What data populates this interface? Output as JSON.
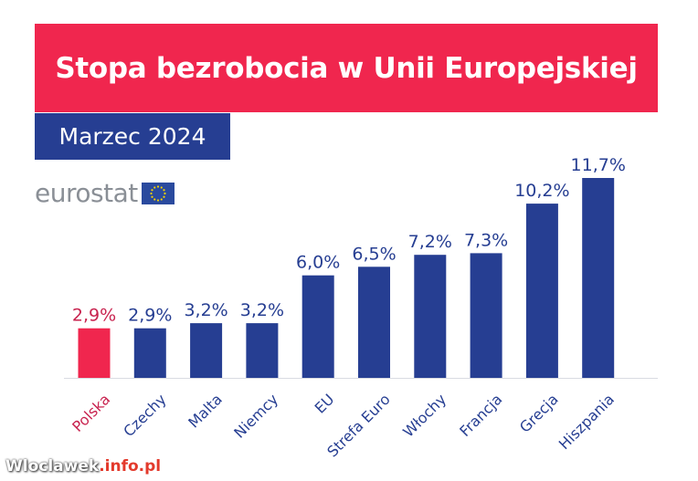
{
  "header": {
    "title": "Stopa bezrobocia w Unii Europejskiej",
    "subtitle": "Marzec 2024"
  },
  "logo": {
    "text": "eurostat",
    "flag_icon": "eu-flag-icon"
  },
  "watermark": {
    "main": "Wloclawek",
    "accent": ".info.pl"
  },
  "colors": {
    "title_bg": "#f0264e",
    "subtitle_bg": "#263e92",
    "bar": "#263e92",
    "highlight_bar": "#f0264e",
    "highlight_label": "#c8234f",
    "label": "#263e92"
  },
  "chart_data": {
    "type": "bar",
    "categories": [
      "Polska",
      "Czechy",
      "Malta",
      "Niemcy",
      "EU",
      "Strefa Euro",
      "Włochy",
      "Francja",
      "Grecja",
      "Hiszpania"
    ],
    "values": [
      2.9,
      2.9,
      3.2,
      3.2,
      6.0,
      6.5,
      7.2,
      7.3,
      10.2,
      11.7
    ],
    "value_labels": [
      "2,9%",
      "2,9%",
      "3,2%",
      "3,2%",
      "6,0%",
      "6,5%",
      "7,2%",
      "7,3%",
      "10,2%",
      "11,7%"
    ],
    "highlight_category": "Polska",
    "ylim": [
      0,
      11.7
    ],
    "grid": false,
    "title": "",
    "xlabel": "",
    "ylabel": ""
  }
}
